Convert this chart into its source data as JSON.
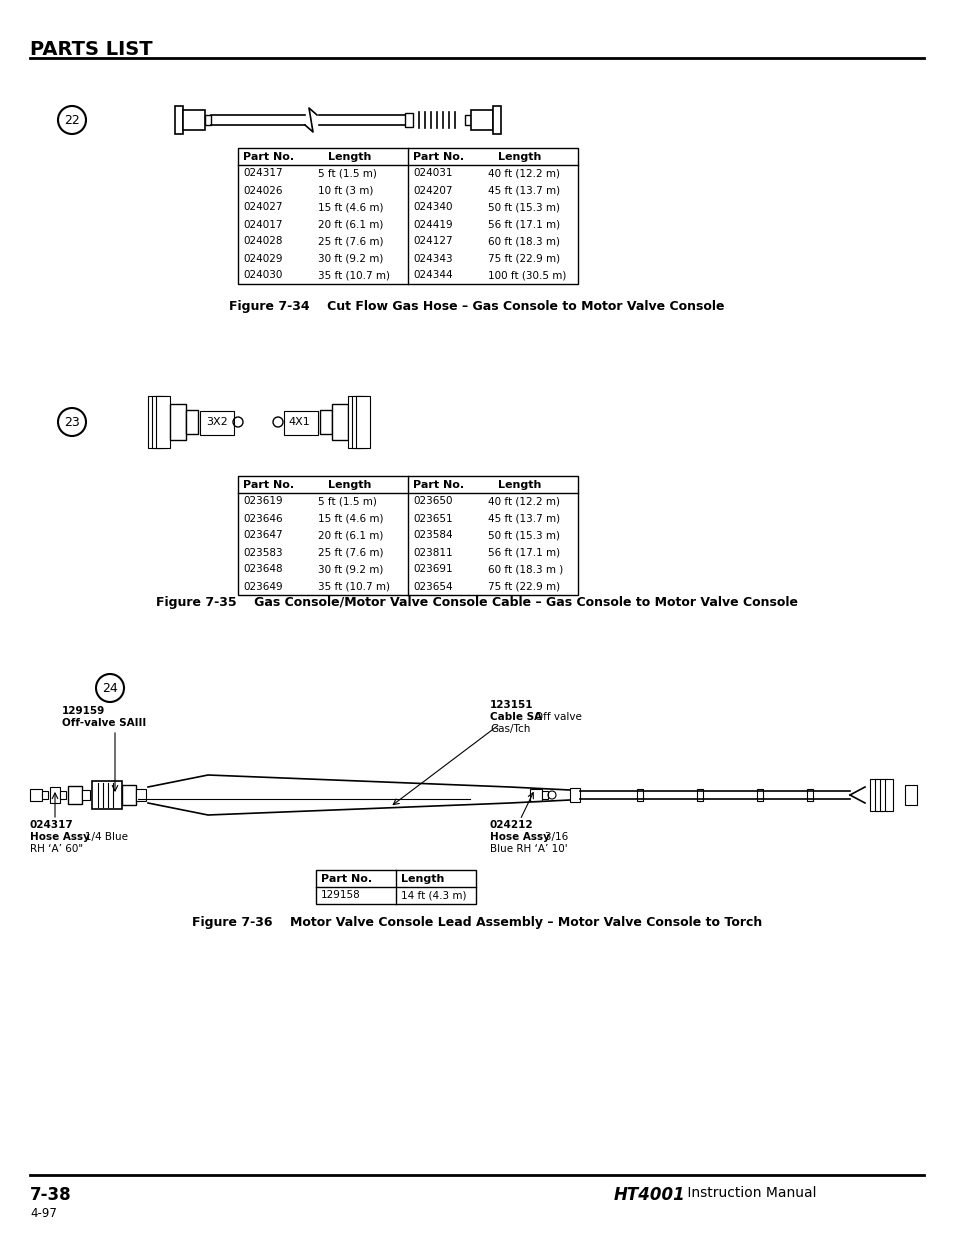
{
  "title": "PARTS LIST",
  "bg_color": "#ffffff",
  "text_color": "#000000",
  "fig34_label": "22",
  "fig34_caption": "Figure 7-34    Cut Flow Gas Hose – Gas Console to Motor Valve Console",
  "table1_left": [
    [
      "024317",
      "5 ft (1.5 m)"
    ],
    [
      "024026",
      "10 ft (3 m)"
    ],
    [
      "024027",
      "15 ft (4.6 m)"
    ],
    [
      "024017",
      "20 ft (6.1 m)"
    ],
    [
      "024028",
      "25 ft (7.6 m)"
    ],
    [
      "024029",
      "30 ft (9.2 m)"
    ],
    [
      "024030",
      "35 ft (10.7 m)"
    ]
  ],
  "table1_right": [
    [
      "024031",
      "40 ft (12.2 m)"
    ],
    [
      "024207",
      "45 ft (13.7 m)"
    ],
    [
      "024340",
      "50 ft (15.3 m)"
    ],
    [
      "024419",
      "56 ft (17.1 m)"
    ],
    [
      "024127",
      "60 ft (18.3 m)"
    ],
    [
      "024343",
      "75 ft (22.9 m)"
    ],
    [
      "024344",
      "100 ft (30.5 m)"
    ]
  ],
  "fig35_label": "23",
  "fig35_caption": "Figure 7-35    Gas Console/Motor Valve Console Cable – Gas Console to Motor Valve Console",
  "table2_left": [
    [
      "023619",
      "5 ft (1.5 m)"
    ],
    [
      "023646",
      "15 ft (4.6 m)"
    ],
    [
      "023647",
      "20 ft (6.1 m)"
    ],
    [
      "023583",
      "25 ft (7.6 m)"
    ],
    [
      "023648",
      "30 ft (9.2 m)"
    ],
    [
      "023649",
      "35 ft (10.7 m)"
    ]
  ],
  "table2_right": [
    [
      "023650",
      "40 ft (12.2 m)"
    ],
    [
      "023651",
      "45 ft (13.7 m)"
    ],
    [
      "023584",
      "50 ft (15.3 m)"
    ],
    [
      "023811",
      "56 ft (17.1 m)"
    ],
    [
      "023691",
      "60 ft (18.3 m )"
    ],
    [
      "023654",
      "75 ft (22.9 m)"
    ]
  ],
  "fig36_label": "24",
  "fig36_caption": "Figure 7-36    Motor Valve Console Lead Assembly – Motor Valve Console to Torch",
  "fig36_label1_line1": "129159",
  "fig36_label1_line2": "Off-valve SAIII",
  "fig36_label2_line1": "123151",
  "fig36_label2_line2": "Cable SA",
  "fig36_label2_line3": ": Off valve",
  "fig36_label2_line4": "Gas/Tch",
  "fig36_label3_line1": "024317",
  "fig36_label3_line2": "Hose Assy",
  "fig36_label3_line3": ": 1/4 Blue",
  "fig36_label3_line4": "RH ‘A’ 60\"",
  "fig36_label4_line1": "024212",
  "fig36_label4_line2": "Hose Assy",
  "fig36_label4_line3": ": 3/16",
  "fig36_label4_line4": "Blue RH ‘A’ 10'",
  "table3_data": [
    [
      "129158",
      "14 ft (4.3 m)"
    ]
  ],
  "footer_left": "7-38",
  "footer_left2": "4-97",
  "footer_right_bold": "HT4001",
  "footer_right_normal": " Instruction Manual"
}
